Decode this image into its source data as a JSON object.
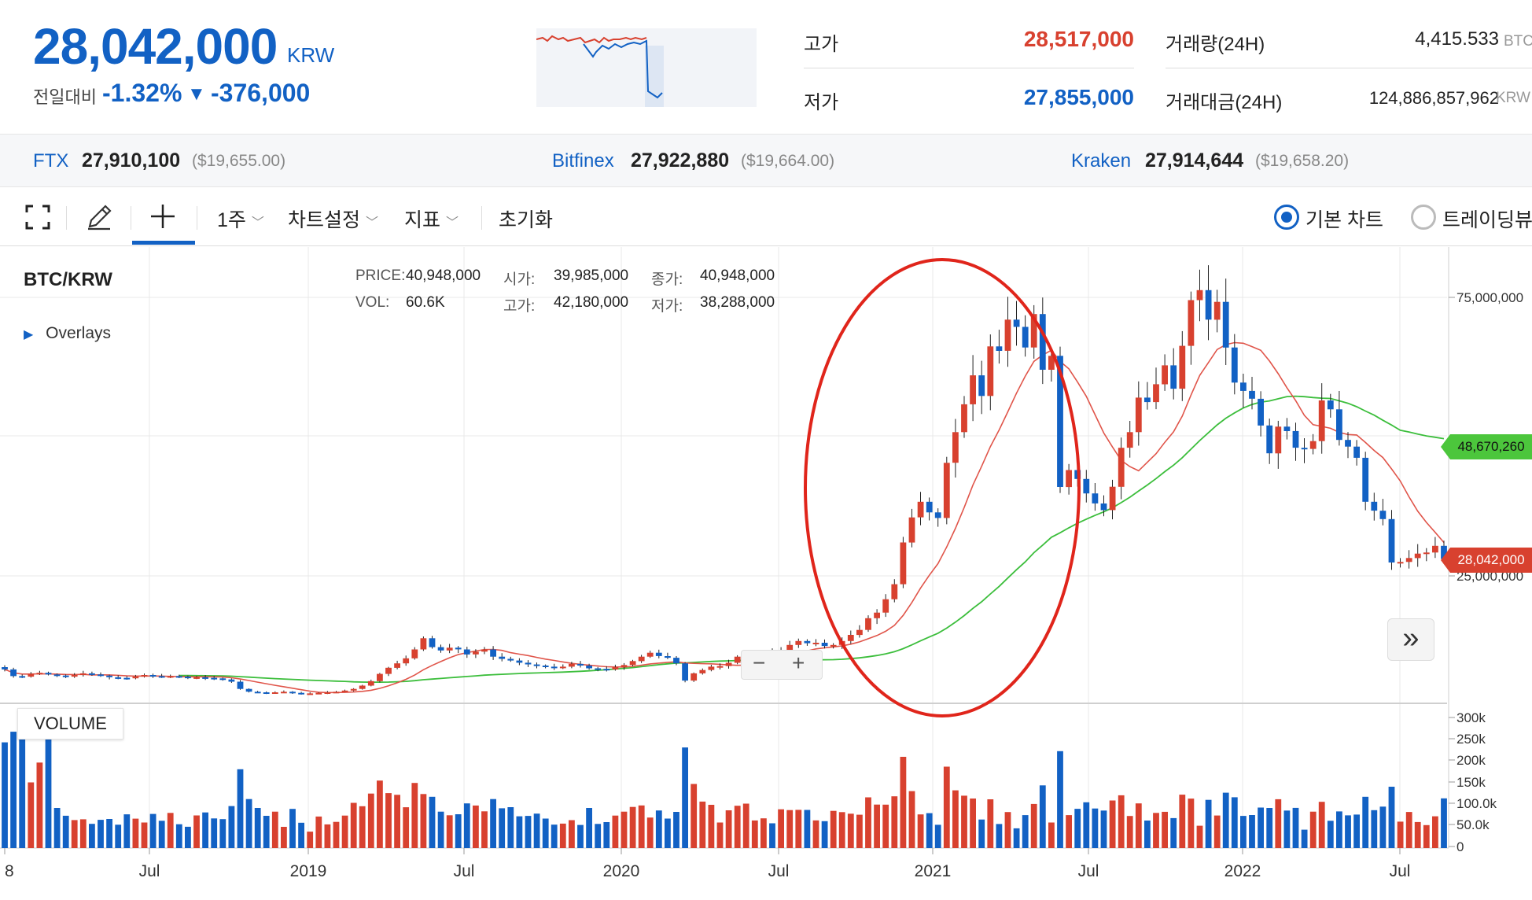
{
  "ticker": {
    "price": "28,042,000",
    "unit": "KRW",
    "change_label": "전일대비",
    "change_pct": "-1.32%",
    "change_arrow": "▼",
    "change_abs": "-376,000"
  },
  "stats": {
    "high_label": "고가",
    "high_value": "28,517,000",
    "low_label": "저가",
    "low_value": "27,855,000",
    "volume_label": "거래량(24H)",
    "volume_value": "4,415.533",
    "volume_unit": "BTC",
    "amount_label": "거래대금(24H)",
    "amount_value": "124,886,857,962",
    "amount_unit": "KRW"
  },
  "exchanges": [
    {
      "name": "FTX",
      "price": "27,910,100",
      "usd": "($19,655.00)"
    },
    {
      "name": "Bitfinex",
      "price": "27,922,880",
      "usd": "($19,664.00)"
    },
    {
      "name": "Kraken",
      "price": "27,914,644",
      "usd": "($19,658.20)"
    }
  ],
  "toolbar": {
    "expand_icon": "fullscreen-icon",
    "draw_icon": "pencil-icon",
    "crosshair_icon": "crosshair-icon",
    "period": "1주",
    "chart_settings": "차트설정",
    "indicators": "지표",
    "reset": "초기화",
    "basic_chart": "기본 차트",
    "trading_view": "트레이딩뷰"
  },
  "chart_header": {
    "pair": "BTC/KRW",
    "overlays": "Overlays",
    "price_label": "PRICE:",
    "price_value": "40,948,000",
    "vol_label": "VOL:",
    "vol_value": "60.6K",
    "open_label": "시가:",
    "open_value": "39,985,000",
    "high_label": "고가:",
    "high_value": "42,180,000",
    "close_label": "종가:",
    "close_value": "40,948,000",
    "low_label": "저가:",
    "low_value": "38,288,000"
  },
  "volume_label": "VOLUME",
  "zoom_minus": "−",
  "zoom_plus": "+",
  "scroll_right": "»",
  "colors": {
    "up": "#d8412f",
    "down": "#1261c4",
    "ma_short": "#e0554a",
    "ma_long": "#3cbe3c",
    "annotation": "#e0251b"
  },
  "chart_data": {
    "type": "candlestick",
    "interval": "1주",
    "price_axis_ticks": [
      "75,000,000",
      "25,000,000"
    ],
    "price_axis_tags": [
      {
        "label": "48,670,260",
        "color": "#3cbe3c"
      },
      {
        "label": "28,042,000",
        "color": "#d8412f"
      }
    ],
    "volume_axis_ticks": [
      "300k",
      "250k",
      "200k",
      "150k",
      "100.0k",
      "50.0k",
      "0"
    ],
    "x_ticks": [
      "8",
      "Jul",
      "2019",
      "Jul",
      "2020",
      "Jul",
      "2021",
      "Jul",
      "2022",
      "Jul"
    ],
    "close_series_krw": [
      8200000,
      7000000,
      6900000,
      7400000,
      7600000,
      7300000,
      7100000,
      6900000,
      7200000,
      7500000,
      7300000,
      7100000,
      6800000,
      6700000,
      6600000,
      6900000,
      7200000,
      7000000,
      6900000,
      7000000,
      6900000,
      6800000,
      6800000,
      6700000,
      6600000,
      6400000,
      6000000,
      4700000,
      4200000,
      4100000,
      4000000,
      4100000,
      4200000,
      4000000,
      3900000,
      3900000,
      4000000,
      4100000,
      4200000,
      4400000,
      4700000,
      5300000,
      6100000,
      7400000,
      8500000,
      9300000,
      10200000,
      11800000,
      13800000,
      12200000,
      11600000,
      12100000,
      11800000,
      10900000,
      11400000,
      11800000,
      10500000,
      10100000,
      9800000,
      9400000,
      9100000,
      8900000,
      8700000,
      8500000,
      8700000,
      9200000,
      8900000,
      8400000,
      8300000,
      8200000,
      8600000,
      9000000,
      9700000,
      10500000,
      11200000,
      10600000,
      10300000,
      9300000,
      6200000,
      7500000,
      8100000,
      8700000,
      8800000,
      9400000,
      10500000,
      11000000,
      11300000,
      11400000,
      11200000,
      11700000,
      12600000,
      13300000,
      12900000,
      13000000,
      12400000,
      12600000,
      13300000,
      14400000,
      15300000,
      17400000,
      18400000,
      20800000,
      23500000,
      31000000,
      35500000,
      38300000,
      36400000,
      35400000,
      45300000,
      50800000,
      55800000,
      61000000,
      57300000,
      66200000,
      65400000,
      71000000,
      69700000,
      66000000,
      72000000,
      62000000,
      64500000,
      40948000,
      44000000,
      42400000,
      39800000,
      38000000,
      36800000,
      41000000,
      48000000,
      50800000,
      57000000,
      56200000,
      59400000,
      62800000,
      58600000,
      66300000,
      74500000,
      76300000,
      71000000,
      74200000,
      66000000,
      59700000,
      58200000,
      56800000,
      52000000,
      47000000,
      51800000,
      51000000,
      48000000,
      47800000,
      49200000,
      56500000,
      54900000,
      49400000,
      48200000,
      46200000,
      38300000,
      36700000,
      35200000,
      27400000,
      27500000,
      28200000,
      29000000,
      29200000,
      30400000,
      28042000
    ]
  }
}
